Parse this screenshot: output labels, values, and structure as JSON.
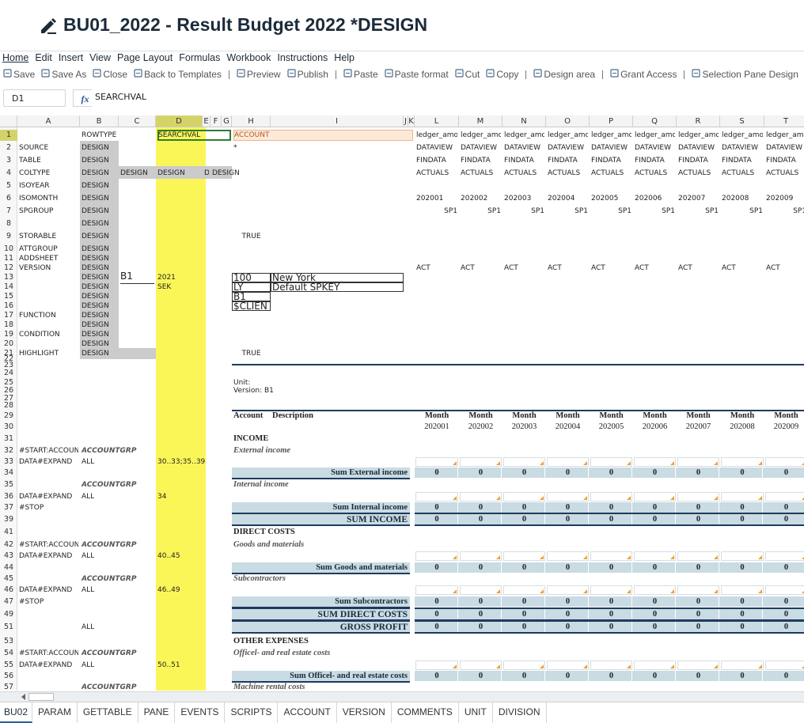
{
  "header": {
    "title": "BU01_2022 - Result Budget 2022 *DESIGN"
  },
  "menu": [
    "Home",
    "Edit",
    "Insert",
    "View",
    "Page Layout",
    "Formulas",
    "Workbook",
    "Instructions",
    "Help"
  ],
  "toolbar": [
    [
      "Save",
      "Save As",
      "Close",
      "Back to Templates"
    ],
    [
      "Preview",
      "Publish"
    ],
    [
      "Paste",
      "Paste format",
      "Cut",
      "Copy"
    ],
    [
      "Design area"
    ],
    [
      "Grant Access"
    ],
    [
      "Selection Pane Design"
    ]
  ],
  "formula_bar": {
    "name_box": "D1",
    "fx": "fx",
    "formula": "SEARCHVAL"
  },
  "grid": {
    "columns": [
      "A",
      "B",
      "C",
      "D",
      "E",
      "F",
      "G",
      "H",
      "I",
      "J",
      "K",
      "L",
      "M",
      "N",
      "O",
      "P",
      "Q",
      "R",
      "S",
      "T"
    ],
    "rows": [
      {
        "number": "1",
        "style": "keys",
        "cells": {
          "B": "ROWTYPE",
          "D": "SEARCHVAL",
          "H": "ACCOUNT",
          "L": "ledger_amo",
          "M": "ledger_amo",
          "N": "ledger_amo",
          "O": "ledger_amo",
          "P": "ledger_amo",
          "Q": "ledger_amo",
          "R": "ledger_amo",
          "S": "ledger_amo",
          "T": "ledger_amo"
        }
      },
      {
        "number": "2",
        "style": "design",
        "cells": {
          "A": "SOURCE",
          "B": "DESIGN",
          "H": "*",
          "L": "DATAVIEW",
          "M": "DATAVIEW",
          "N": "DATAVIEW",
          "O": "DATAVIEW",
          "P": "DATAVIEW",
          "Q": "DATAVIEW",
          "R": "DATAVIEW",
          "S": "DATAVIEW",
          "T": "DATAVIEW"
        }
      },
      {
        "number": "3",
        "style": "design",
        "cells": {
          "A": "TABLE",
          "B": "DESIGN",
          "L": "FINDATA",
          "M": "FINDATA",
          "N": "FINDATA",
          "O": "FINDATA",
          "P": "FINDATA",
          "Q": "FINDATA",
          "R": "FINDATA",
          "S": "FINDATA",
          "T": "FINDATA"
        }
      },
      {
        "number": "4",
        "style": "wide",
        "cells": {
          "A": "COLTYPE",
          "B": "DESIGN",
          "C": "DESIGN",
          "D": "DESIGN",
          "E": "DE",
          "F": "DESIGN",
          "L": "ACTUALS",
          "M": "ACTUALS",
          "N": "ACTUALS",
          "O": "ACTUALS",
          "P": "ACTUALS",
          "Q": "ACTUALS",
          "R": "ACTUALS",
          "S": "ACTUALS",
          "T": "ACTUALS"
        }
      },
      {
        "number": "5",
        "style": "design",
        "cells": {
          "A": "ISOYEAR",
          "B": "DESIGN"
        }
      },
      {
        "number": "6",
        "style": "design",
        "cells": {
          "A": "ISOMONTH",
          "B": "DESIGN",
          "L": "202001",
          "M": "202002",
          "N": "202003",
          "O": "202004",
          "P": "202005",
          "Q": "202006",
          "R": "202007",
          "S": "202008",
          "T": "202009"
        }
      },
      {
        "number": "7",
        "style": "design align-right",
        "cells": {
          "A": "SPGROUP",
          "B": "DESIGN",
          "L": "SP1",
          "M": "SP1",
          "N": "SP1",
          "O": "SP1",
          "P": "SP1",
          "Q": "SP1",
          "R": "SP1",
          "S": "SP1",
          "T": "SP1"
        }
      },
      {
        "number": "8",
        "style": "design",
        "cells": {
          "B": "DESIGN"
        }
      },
      {
        "number": "9",
        "style": "design flag",
        "cells": {
          "A": "STORABLE",
          "B": "DESIGN",
          "H": "TRUE"
        }
      },
      {
        "number": "10",
        "style": "design",
        "cells": {
          "A": "ATTGROUP",
          "B": "DESIGN"
        }
      },
      {
        "number": "11",
        "style": "design",
        "cells": {
          "A": "ADDSHEET",
          "B": "DESIGN"
        }
      },
      {
        "number": "12",
        "style": "design",
        "cells": {
          "A": "VERSION",
          "B": "DESIGN",
          "L": "ACT",
          "M": "ACT",
          "N": "ACT",
          "O": "ACT",
          "P": "ACT",
          "Q": "ACT",
          "R": "ACT",
          "S": "ACT",
          "T": "ACT"
        }
      },
      {
        "number": "13",
        "style": "design box",
        "cells": {
          "B": "DESIGN",
          "C": "B1",
          "D": "2021",
          "H": "100",
          "I": "New York"
        }
      },
      {
        "number": "14",
        "style": "design box",
        "cells": {
          "B": "DESIGN",
          "D": "SEK",
          "H": "LY",
          "I": "Default SPKEY"
        }
      },
      {
        "number": "15",
        "style": "design box",
        "cells": {
          "B": "DESIGN",
          "H": "B1"
        }
      },
      {
        "number": "16",
        "style": "design box",
        "cells": {
          "B": "DESIGN",
          "H": "$CLIEN"
        }
      },
      {
        "number": "17",
        "style": "design",
        "cells": {
          "A": "FUNCTION",
          "B": "DESIGN"
        }
      },
      {
        "number": "18",
        "style": "design",
        "cells": {
          "B": "DESIGN"
        }
      },
      {
        "number": "19",
        "style": "design",
        "cells": {
          "A": "CONDITION",
          "B": "DESIGN"
        }
      },
      {
        "number": "20",
        "style": "design",
        "cells": {
          "B": "DESIGN"
        }
      },
      {
        "number": "21",
        "style": "tail flag",
        "cells": {
          "A": "HIGHLIGHT",
          "B": "DESIGN",
          "H": "TRUE"
        }
      },
      {
        "number": "22",
        "cells": {}
      },
      {
        "number": "23",
        "cells": {}
      },
      {
        "number": "24",
        "cells": {}
      },
      {
        "number": "25",
        "cells": {
          "H": "Unit:"
        }
      },
      {
        "number": "26",
        "cells": {
          "H": "Version: B1"
        }
      },
      {
        "number": "27",
        "cells": {}
      },
      {
        "number": "28",
        "cells": {}
      },
      {
        "number": "29",
        "style": "colhead",
        "cells": {
          "H": "Account",
          "I": "Description",
          "L": "Month",
          "M": "Month",
          "N": "Month",
          "O": "Month",
          "P": "Month",
          "Q": "Month",
          "R": "Month",
          "S": "Month",
          "T": "Month"
        }
      },
      {
        "number": "30",
        "style": "period",
        "cells": {
          "L": "202001",
          "M": "202002",
          "N": "202003",
          "O": "202004",
          "P": "202005",
          "Q": "202006",
          "R": "202007",
          "S": "202008",
          "T": "202009"
        }
      },
      {
        "number": "31",
        "style": "section",
        "cells": {
          "H": "INCOME"
        }
      },
      {
        "number": "32",
        "style": "group",
        "cells": {
          "A": "#START:ACCOUN",
          "B": "ACCOUNTGRP",
          "H": "External income"
        }
      },
      {
        "number": "33",
        "style": "input",
        "cells": {
          "A": "DATA#EXPAND",
          "B": "ALL",
          "D": "30..33;35..39"
        }
      },
      {
        "number": "34",
        "style": "sum",
        "cells": {
          "H": "Sum External income",
          "L": "0",
          "M": "0",
          "N": "0",
          "O": "0",
          "P": "0",
          "Q": "0",
          "R": "0",
          "S": "0",
          "T": "0"
        }
      },
      {
        "number": "35",
        "style": "group",
        "cells": {
          "B": "ACCOUNTGRP",
          "H": "Internal income"
        }
      },
      {
        "number": "36",
        "style": "input",
        "cells": {
          "A": "DATA#EXPAND",
          "B": "ALL",
          "D": "34"
        }
      },
      {
        "number": "37",
        "style": "sum",
        "cells": {
          "A": "#STOP",
          "H": "Sum Internal income",
          "L": "0",
          "M": "0",
          "N": "0",
          "O": "0",
          "P": "0",
          "Q": "0",
          "R": "0",
          "S": "0",
          "T": "0"
        }
      },
      {
        "number": "39",
        "style": "total",
        "cells": {
          "H": "SUM INCOME",
          "L": "0",
          "M": "0",
          "N": "0",
          "O": "0",
          "P": "0",
          "Q": "0",
          "R": "0",
          "S": "0",
          "T": "0"
        }
      },
      {
        "number": "41",
        "style": "section",
        "cells": {
          "H": "DIRECT COSTS"
        }
      },
      {
        "number": "42",
        "style": "group",
        "cells": {
          "A": "#START:ACCOUN",
          "B": "ACCOUNTGRP",
          "H": "Goods and materials"
        }
      },
      {
        "number": "43",
        "style": "input",
        "cells": {
          "A": "DATA#EXPAND",
          "B": "ALL",
          "D": "40..45"
        }
      },
      {
        "number": "44",
        "style": "sum",
        "cells": {
          "H": "Sum Goods and materials",
          "L": "0",
          "M": "0",
          "N": "0",
          "O": "0",
          "P": "0",
          "Q": "0",
          "R": "0",
          "S": "0",
          "T": "0"
        }
      },
      {
        "number": "45",
        "style": "group",
        "cells": {
          "B": "ACCOUNTGRP",
          "H": "Subcontractors"
        }
      },
      {
        "number": "46",
        "style": "input",
        "cells": {
          "A": "DATA#EXPAND",
          "B": "ALL",
          "D": "46..49"
        }
      },
      {
        "number": "47",
        "style": "sum",
        "cells": {
          "A": "#STOP",
          "H": "Sum Subcontractors",
          "L": "0",
          "M": "0",
          "N": "0",
          "O": "0",
          "P": "0",
          "Q": "0",
          "R": "0",
          "S": "0",
          "T": "0"
        }
      },
      {
        "number": "49",
        "style": "total",
        "cells": {
          "H": "SUM DIRECT COSTS",
          "L": "0",
          "M": "0",
          "N": "0",
          "O": "0",
          "P": "0",
          "Q": "0",
          "R": "0",
          "S": "0",
          "T": "0"
        }
      },
      {
        "number": "51",
        "style": "total",
        "cells": {
          "B": "ALL",
          "H": "GROSS PROFIT",
          "L": "0",
          "M": "0",
          "N": "0",
          "O": "0",
          "P": "0",
          "Q": "0",
          "R": "0",
          "S": "0",
          "T": "0"
        }
      },
      {
        "number": "53",
        "style": "section",
        "cells": {
          "H": "OTHER EXPENSES"
        }
      },
      {
        "number": "54",
        "style": "group",
        "cells": {
          "A": "#START:ACCOUN",
          "B": "ACCOUNTGRP",
          "H": "Officel- and real estate costs"
        }
      },
      {
        "number": "55",
        "style": "input",
        "cells": {
          "A": "DATA#EXPAND",
          "B": "ALL",
          "D": "50..51"
        }
      },
      {
        "number": "56",
        "style": "sum",
        "cells": {
          "H": "Sum Officel- and real estate costs",
          "L": "0",
          "M": "0",
          "N": "0",
          "O": "0",
          "P": "0",
          "Q": "0",
          "R": "0",
          "S": "0",
          "T": "0"
        }
      },
      {
        "number": "57",
        "style": "group",
        "cells": {
          "B": "ACCOUNTGRP",
          "H": "Machine rental costs"
        }
      }
    ]
  },
  "tabs": [
    "BU02",
    "PARAM",
    "GETTABLE",
    "PANE",
    "EVENTS",
    "SCRIPTS",
    "ACCOUNT",
    "VERSION",
    "COMMENTS",
    "UNIT",
    "DIVISION"
  ]
}
